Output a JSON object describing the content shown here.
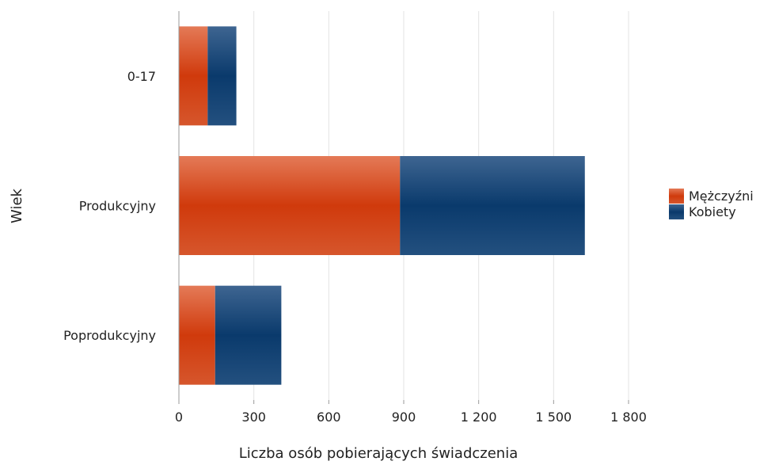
{
  "chart_data": {
    "type": "bar",
    "orientation": "horizontal",
    "stacked": true,
    "categories": [
      "0-17",
      "Produkcyjny",
      "Poprodukcyjny"
    ],
    "series": [
      {
        "name": "Mężczyźni",
        "color": "#d03a0c",
        "values": [
          115,
          885,
          145
        ]
      },
      {
        "name": "Kobiety",
        "color": "#0e3f73",
        "values": [
          115,
          740,
          265
        ]
      }
    ],
    "xlabel": "Liczba osób pobierających świadczenia",
    "ylabel": "Wiek",
    "xlim": [
      0,
      1800
    ],
    "xticks": [
      0,
      300,
      600,
      900,
      1200,
      1500,
      1800
    ],
    "xtick_labels": [
      "0",
      "300",
      "600",
      "900",
      "1 200",
      "1 500",
      "1 800"
    ],
    "grid": "vertical",
    "legend_position": "right"
  }
}
